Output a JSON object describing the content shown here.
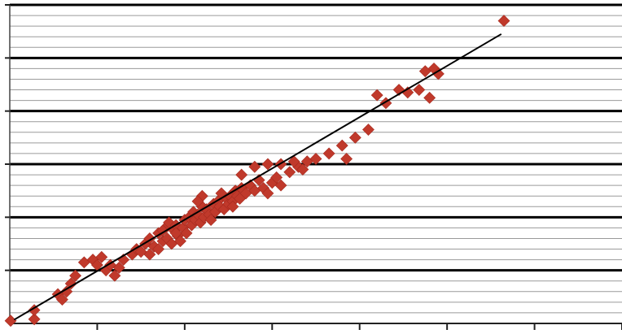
{
  "chart_data": {
    "type": "scatter",
    "title": "",
    "xlabel": "",
    "ylabel": "",
    "xlim": [
      0,
      7
    ],
    "ylim": [
      0,
      6
    ],
    "grid": {
      "major_y": true,
      "minor_y": true,
      "major_y_step": 1,
      "minor_y_step": 0.2
    },
    "x_major_step": 1,
    "colors": {
      "marker": "#C0392B",
      "trendline": "#000000",
      "major_grid": "#000000",
      "minor_grid": "#9a9a9a"
    },
    "trendline": {
      "x": [
        0.05,
        5.62
      ],
      "y": [
        0.07,
        5.45
      ]
    },
    "series": [
      {
        "marker": "diamond",
        "points": [
          [
            0.01,
            0.05
          ],
          [
            0.28,
            0.08
          ],
          [
            0.28,
            0.25
          ],
          [
            0.55,
            0.55
          ],
          [
            0.65,
            0.6
          ],
          [
            0.7,
            0.75
          ],
          [
            0.75,
            0.9
          ],
          [
            0.85,
            1.15
          ],
          [
            0.95,
            1.2
          ],
          [
            1.0,
            1.1
          ],
          [
            1.05,
            1.25
          ],
          [
            1.1,
            1.0
          ],
          [
            1.15,
            1.1
          ],
          [
            1.25,
            1.05
          ],
          [
            1.3,
            1.2
          ],
          [
            1.4,
            1.3
          ],
          [
            1.45,
            1.4
          ],
          [
            1.5,
            1.35
          ],
          [
            1.55,
            1.5
          ],
          [
            1.6,
            1.3
          ],
          [
            1.6,
            1.6
          ],
          [
            1.65,
            1.45
          ],
          [
            1.7,
            1.4
          ],
          [
            1.7,
            1.7
          ],
          [
            1.75,
            1.55
          ],
          [
            1.78,
            1.8
          ],
          [
            1.8,
            1.6
          ],
          [
            1.82,
            1.9
          ],
          [
            1.85,
            1.5
          ],
          [
            1.88,
            1.75
          ],
          [
            1.9,
            1.85
          ],
          [
            1.92,
            1.65
          ],
          [
            1.95,
            1.55
          ],
          [
            1.98,
            1.8
          ],
          [
            2.0,
            1.95
          ],
          [
            2.02,
            1.7
          ],
          [
            2.05,
            2.0
          ],
          [
            2.08,
            1.85
          ],
          [
            2.1,
            2.1
          ],
          [
            2.12,
            1.95
          ],
          [
            2.15,
            2.05
          ],
          [
            2.18,
            1.9
          ],
          [
            2.2,
            2.2
          ],
          [
            2.22,
            2.0
          ],
          [
            2.25,
            2.15
          ],
          [
            2.28,
            2.05
          ],
          [
            2.3,
            1.95
          ],
          [
            2.33,
            2.25
          ],
          [
            2.35,
            2.1
          ],
          [
            2.38,
            2.3
          ],
          [
            2.4,
            2.2
          ],
          [
            2.42,
            2.45
          ],
          [
            2.45,
            2.15
          ],
          [
            2.48,
            2.35
          ],
          [
            2.5,
            2.25
          ],
          [
            2.52,
            2.4
          ],
          [
            2.55,
            2.3
          ],
          [
            2.58,
            2.5
          ],
          [
            2.6,
            2.4
          ],
          [
            2.63,
            2.35
          ],
          [
            2.65,
            2.55
          ],
          [
            2.7,
            2.45
          ],
          [
            2.75,
            2.6
          ],
          [
            2.8,
            2.5
          ],
          [
            2.85,
            2.7
          ],
          [
            2.9,
            2.55
          ],
          [
            2.95,
            2.45
          ],
          [
            3.0,
            2.65
          ],
          [
            3.05,
            2.75
          ],
          [
            3.1,
            2.6
          ],
          [
            3.2,
            2.85
          ],
          [
            3.3,
            2.95
          ],
          [
            3.4,
            3.05
          ],
          [
            3.5,
            3.1
          ],
          [
            3.65,
            3.2
          ],
          [
            3.8,
            3.35
          ],
          [
            3.95,
            3.5
          ],
          [
            4.1,
            3.65
          ],
          [
            3.85,
            3.1
          ],
          [
            2.65,
            2.8
          ],
          [
            2.8,
            2.95
          ],
          [
            2.95,
            3.0
          ],
          [
            3.1,
            3.0
          ],
          [
            3.25,
            3.05
          ],
          [
            3.35,
            2.9
          ],
          [
            2.2,
            2.4
          ],
          [
            2.15,
            2.3
          ],
          [
            1.75,
            1.75
          ],
          [
            4.3,
            4.15
          ],
          [
            4.45,
            4.4
          ],
          [
            4.55,
            4.35
          ],
          [
            4.68,
            4.4
          ],
          [
            4.75,
            4.75
          ],
          [
            4.85,
            4.8
          ],
          [
            4.9,
            4.7
          ],
          [
            4.8,
            4.25
          ],
          [
            4.2,
            4.3
          ],
          [
            5.65,
            5.7
          ],
          [
            1.2,
            0.9
          ],
          [
            1.9,
            1.7
          ],
          [
            2.55,
            2.2
          ],
          [
            0.6,
            0.45
          ]
        ]
      }
    ]
  }
}
